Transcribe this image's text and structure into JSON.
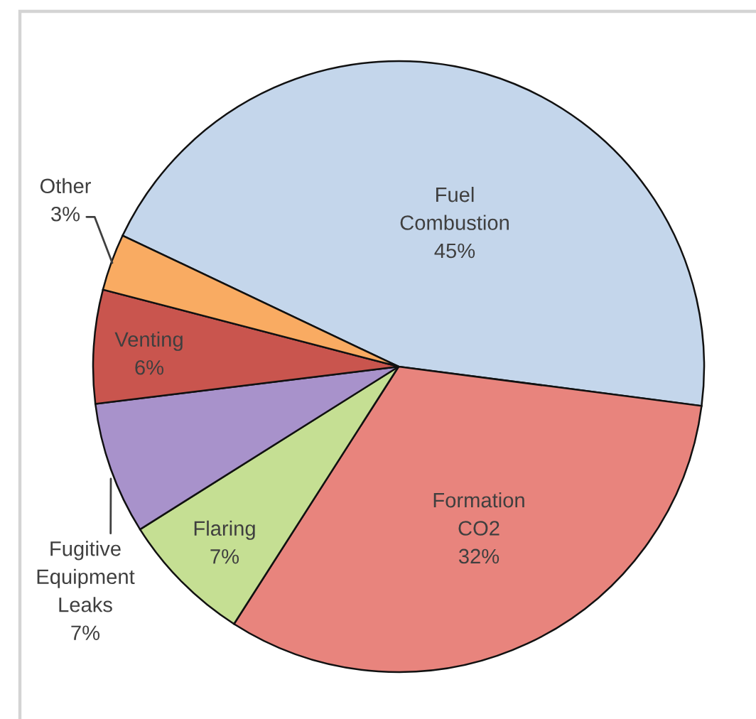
{
  "chart_data": {
    "type": "pie",
    "categories": [
      "Fuel Combustion",
      "Formation CO2",
      "Flaring",
      "Fugitive Equipment Leaks",
      "Venting",
      "Other"
    ],
    "values": [
      45,
      32,
      7,
      7,
      6,
      3
    ],
    "value_labels": [
      "45%",
      "32%",
      "7%",
      "7%",
      "6%",
      "3%"
    ],
    "colors": [
      "#c4d6eb",
      "#e8847d",
      "#c5df93",
      "#a892cb",
      "#c9554e",
      "#f9ab62"
    ]
  }
}
